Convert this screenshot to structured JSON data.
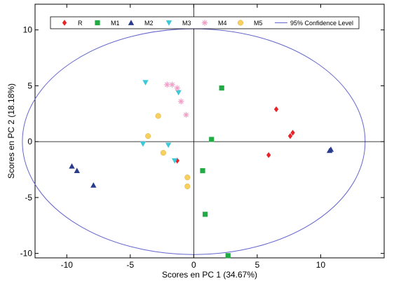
{
  "chart_data": {
    "type": "scatter",
    "xlabel": "Scores en PC 1 (34.67%)",
    "ylabel": "Scores en PC 2 (18.18%)",
    "xlim": [
      -12.5,
      15
    ],
    "ylim": [
      -10.4,
      12.3
    ],
    "xticks": [
      -10,
      -5,
      0,
      5,
      10
    ],
    "yticks": [
      -10,
      -5,
      0,
      5,
      10
    ],
    "grid": false,
    "legend_position": "top",
    "zero_lines": true,
    "series": [
      {
        "name": "R",
        "marker": "diamond",
        "color": "#e8232a",
        "points": [
          [
            6.5,
            2.9
          ],
          [
            7.6,
            0.5
          ],
          [
            7.8,
            0.8
          ],
          [
            5.9,
            -1.2
          ],
          [
            -1.3,
            -1.7
          ]
        ]
      },
      {
        "name": "M1",
        "marker": "square",
        "color": "#22aa44",
        "points": [
          [
            2.2,
            4.8
          ],
          [
            1.4,
            0.2
          ],
          [
            0.7,
            -2.6
          ],
          [
            0.9,
            -6.5
          ],
          [
            2.7,
            -10.2
          ]
        ]
      },
      {
        "name": "M2",
        "marker": "triangle-up",
        "color": "#2a3a8c",
        "points": [
          [
            -9.6,
            -2.2
          ],
          [
            -9.2,
            -2.6
          ],
          [
            -7.9,
            -3.9
          ],
          [
            10.7,
            -0.8
          ],
          [
            10.8,
            -0.7
          ]
        ]
      },
      {
        "name": "M3",
        "marker": "triangle-down",
        "color": "#3cc8d8",
        "points": [
          [
            -3.8,
            5.3
          ],
          [
            -1.2,
            4.4
          ],
          [
            -2.0,
            -0.3
          ],
          [
            -4.0,
            -0.2
          ],
          [
            -1.5,
            -1.7
          ]
        ]
      },
      {
        "name": "M4",
        "marker": "star",
        "color": "#f0a0c8",
        "points": [
          [
            -2.1,
            5.1
          ],
          [
            -1.7,
            5.1
          ],
          [
            -1.3,
            4.8
          ],
          [
            -1.0,
            3.6
          ],
          [
            -0.6,
            2.4
          ]
        ]
      },
      {
        "name": "M5",
        "marker": "circle",
        "color": "#f8d060",
        "points": [
          [
            -2.8,
            2.3
          ],
          [
            -3.6,
            0.5
          ],
          [
            -2.4,
            -1.0
          ],
          [
            -0.5,
            -3.2
          ],
          [
            -0.5,
            -4.0
          ]
        ]
      }
    ],
    "confidence": {
      "name": "95% Confidence Level",
      "color": "#6666cc",
      "center": [
        0,
        0
      ],
      "rx": 13.5,
      "ry": 10.1
    }
  }
}
